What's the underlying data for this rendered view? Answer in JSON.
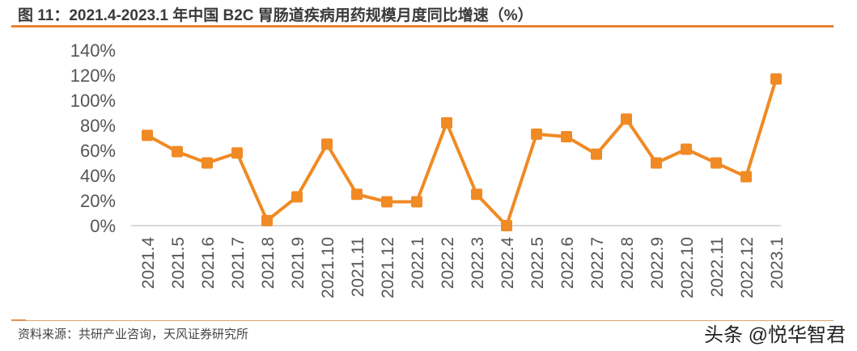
{
  "title": "图 11：2021.4-2023.1 年中国 B2C 胃肠道疾病用药规模月度同比增速（%）",
  "source": "资料来源：共研产业咨询，天风证券研究所",
  "watermark": "头条 @悦华智君",
  "chart_data": {
    "type": "line",
    "title": "",
    "xlabel": "",
    "ylabel": "",
    "ylim": [
      0,
      140
    ],
    "yticks": [
      "0%",
      "20%",
      "40%",
      "60%",
      "80%",
      "100%",
      "120%",
      "140%"
    ],
    "grid": false,
    "color": "#f08a24",
    "marker": "square",
    "categories": [
      "2021.4",
      "2021.5",
      "2021.6",
      "2021.7",
      "2021.8",
      "2021.9",
      "2021.10",
      "2021.11",
      "2021.12",
      "2022.1",
      "2022.2",
      "2022.3",
      "2022.4",
      "2022.5",
      "2022.6",
      "2022.7",
      "2022.8",
      "2022.9",
      "2022.10",
      "2022.11",
      "2022.12",
      "2023.1"
    ],
    "values": [
      72,
      59,
      50,
      58,
      4,
      23,
      65,
      25,
      19,
      19,
      82,
      25,
      0,
      73,
      71,
      57,
      85,
      50,
      61,
      50,
      39,
      117
    ]
  }
}
